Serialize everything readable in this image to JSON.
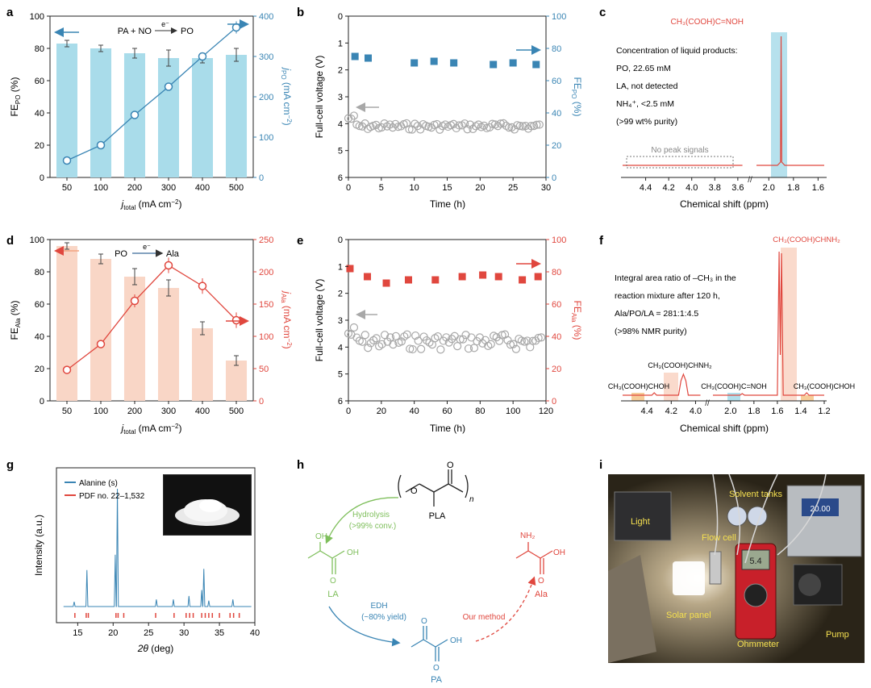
{
  "colors": {
    "blue": "#3a85b4",
    "lightblue": "#a9dcea",
    "red": "#e0473e",
    "salmon": "#f9d6c6",
    "grey": "#a8a8a8",
    "green": "#7fbf5c",
    "dark": "#222222"
  },
  "chart_data": [
    {
      "id": "a",
      "type": "bar+line",
      "categories": [
        "50",
        "100",
        "200",
        "300",
        "400",
        "500"
      ],
      "series": [
        {
          "name": "FE_PO",
          "axis": "left",
          "values": [
            83,
            80,
            77,
            74,
            74,
            76
          ],
          "errors": [
            2,
            2,
            3,
            5,
            3,
            4
          ]
        },
        {
          "name": "j_PO",
          "axis": "right",
          "values": [
            42,
            80,
            155,
            225,
            300,
            372
          ],
          "errors": [
            6,
            6,
            6,
            9,
            9,
            15
          ]
        }
      ],
      "xlabel": "j_total (mA cm^-2)",
      "ylabel": "FE_PO (%)",
      "y2label": "j_PO (mA cm^-2)",
      "ylim": [
        0,
        100
      ],
      "y2lim": [
        0,
        400
      ],
      "yticks": [
        "0",
        "20",
        "40",
        "60",
        "80",
        "100"
      ],
      "y2ticks": [
        "0",
        "100",
        "200",
        "300",
        "400"
      ],
      "annotation_left": "PA + NO",
      "annotation_arrow": "e⁻",
      "annotation_right": "PO"
    },
    {
      "id": "b",
      "type": "scatter",
      "xlim": [
        0,
        30
      ],
      "ylim_left": [
        6,
        0
      ],
      "ylim_right": [
        0,
        100
      ],
      "xticks": [
        "0",
        "5",
        "10",
        "15",
        "20",
        "25",
        "30"
      ],
      "yticks": [
        "0",
        "1",
        "2",
        "3",
        "4",
        "5",
        "6"
      ],
      "y2ticks": [
        "0",
        "20",
        "40",
        "60",
        "80",
        "100"
      ],
      "xlabel": "Time (h)",
      "ylabel": "Full-cell voltage (V)",
      "y2label": "FE_PO (%)",
      "fe_series": {
        "x": [
          1,
          3,
          10,
          13,
          16,
          22,
          25,
          28.5
        ],
        "y": [
          75,
          74,
          71,
          72,
          71,
          70,
          71,
          70
        ]
      },
      "voltage_series": {
        "x_range": [
          0,
          29
        ],
        "y_mean": 4.1
      }
    },
    {
      "id": "c",
      "type": "nmr",
      "xlim": [
        4.6,
        1.55
      ],
      "xticks": [
        "4.4",
        "4.2",
        "4.0",
        "3.8",
        "3.6",
        "2.0",
        "1.8",
        "1.6"
      ],
      "xlabel": "Chemical shift (ppm)",
      "peak_label": "CH₃(COOH)C=NOH",
      "peak_position": 1.9,
      "note_title": "Concentration of liquid products:",
      "note_po": "PO, 22.65 mM",
      "note_la": "LA, not detected",
      "note_nh4": "NH₄⁺, <2.5 mM",
      "note_purity": "(>99 wt% purity)",
      "no_peak": "No peak signals"
    },
    {
      "id": "d",
      "type": "bar+line",
      "categories": [
        "50",
        "100",
        "200",
        "300",
        "400",
        "500"
      ],
      "series": [
        {
          "name": "FE_Ala",
          "axis": "left",
          "values": [
            96,
            88,
            77,
            70,
            45,
            25
          ],
          "errors": [
            2,
            3,
            5,
            5,
            4,
            3
          ]
        },
        {
          "name": "j_Ala",
          "axis": "right",
          "values": [
            48,
            88,
            155,
            210,
            178,
            125
          ],
          "errors": [
            5,
            5,
            10,
            12,
            12,
            12
          ]
        }
      ],
      "xlabel": "j_total (mA cm^-2)",
      "ylabel": "FE_Ala (%)",
      "y2label": "j_Ala (mA cm^-2)",
      "ylim": [
        0,
        100
      ],
      "y2lim": [
        0,
        250
      ],
      "yticks": [
        "0",
        "20",
        "40",
        "60",
        "80",
        "100"
      ],
      "y2ticks": [
        "0",
        "50",
        "100",
        "150",
        "200",
        "250"
      ],
      "annotation_left": "PO",
      "annotation_arrow": "e⁻",
      "annotation_right": "Ala"
    },
    {
      "id": "e",
      "type": "scatter",
      "xlim": [
        0,
        125
      ],
      "ylim_left": [
        6,
        0
      ],
      "ylim_right": [
        0,
        100
      ],
      "xticks": [
        "0",
        "20",
        "40",
        "60",
        "80",
        "100",
        "120"
      ],
      "yticks": [
        "0",
        "1",
        "2",
        "3",
        "4",
        "5",
        "6"
      ],
      "y2ticks": [
        "0",
        "20",
        "40",
        "60",
        "80",
        "100"
      ],
      "xlabel": "Time (h)",
      "ylabel": "Full-cell voltage (V)",
      "y2label": "FE_Ala (%)",
      "fe_series": {
        "x": [
          1,
          12,
          24,
          38,
          55,
          72,
          85,
          95,
          110,
          120
        ],
        "y": [
          82,
          77,
          73,
          75,
          75,
          77,
          78,
          77,
          75,
          77
        ]
      },
      "voltage_series": {
        "x_range": [
          0,
          122
        ],
        "y_mean": 3.8
      }
    },
    {
      "id": "f",
      "type": "nmr",
      "xlim": [
        4.6,
        1.2
      ],
      "xticks": [
        "4.4",
        "4.2",
        "4.0",
        "2.0",
        "1.8",
        "1.6",
        "1.4",
        "1.2"
      ],
      "xlabel": "Chemical shift (ppm)",
      "main_label": "CH₃(COOH)CHNH₂",
      "note1": "Integral area ratio of –CH₃ in the",
      "note2": "reaction mixture after 120 h,",
      "note3": "Ala/PO/LA = 281:1:4.5",
      "note4": "(>98% NMR purity)",
      "label_lactic": "CH₃(COOH)CHOH",
      "label_ala_ch": "CH₃(COOH)CHNH₂",
      "label_po": "CH₃(COOH)C=NOH",
      "label_la_ch3": "CH₃(COOH)CHOH"
    },
    {
      "id": "g",
      "type": "xrd",
      "xlim": [
        12,
        40
      ],
      "xticks": [
        "15",
        "20",
        "25",
        "30",
        "35",
        "40"
      ],
      "xlabel": "2θ (deg)",
      "ylabel": "Intensity (a.u.)",
      "legend": [
        "Alanine (s)",
        "PDF no. 22–1,532"
      ],
      "peaks": [
        {
          "x": 14.5,
          "h": 0.04
        },
        {
          "x": 16.3,
          "h": 0.31
        },
        {
          "x": 20.3,
          "h": 0.44
        },
        {
          "x": 20.6,
          "h": 1.0
        },
        {
          "x": 26.1,
          "h": 0.06
        },
        {
          "x": 28.5,
          "h": 0.06
        },
        {
          "x": 30.7,
          "h": 0.09
        },
        {
          "x": 32.5,
          "h": 0.14
        },
        {
          "x": 32.8,
          "h": 0.32
        },
        {
          "x": 33.5,
          "h": 0.05
        },
        {
          "x": 36.9,
          "h": 0.06
        }
      ],
      "ref_peaks": [
        14.6,
        16.2,
        16.5,
        20.4,
        20.7,
        21.5,
        26.0,
        28.6,
        30.3,
        30.8,
        31.3,
        32.5,
        33.0,
        33.5,
        34.0,
        35.0,
        36.5,
        37.0,
        37.8
      ]
    }
  ],
  "labels": {
    "a": "a",
    "b": "b",
    "c": "c",
    "d": "d",
    "e": "e",
    "f": "f",
    "g": "g",
    "h": "h",
    "i": "i"
  },
  "scheme": {
    "pla": "PLA",
    "n": "n",
    "hydrolysis": "Hydrolysis",
    "hydro_conv": "(>99% conv.)",
    "la": "LA",
    "edh": "EDH",
    "edh_yield": "(~80% yield)",
    "pa": "PA",
    "ala": "Ala",
    "method": "Our method"
  },
  "photo": {
    "light": "Light",
    "solvent": "Solvent tanks",
    "flowcell": "Flow cell",
    "solar": "Solar panel",
    "ohm": "Ohmmeter",
    "pump": "Pump",
    "display": "5.4",
    "pump_display": "20.00"
  }
}
